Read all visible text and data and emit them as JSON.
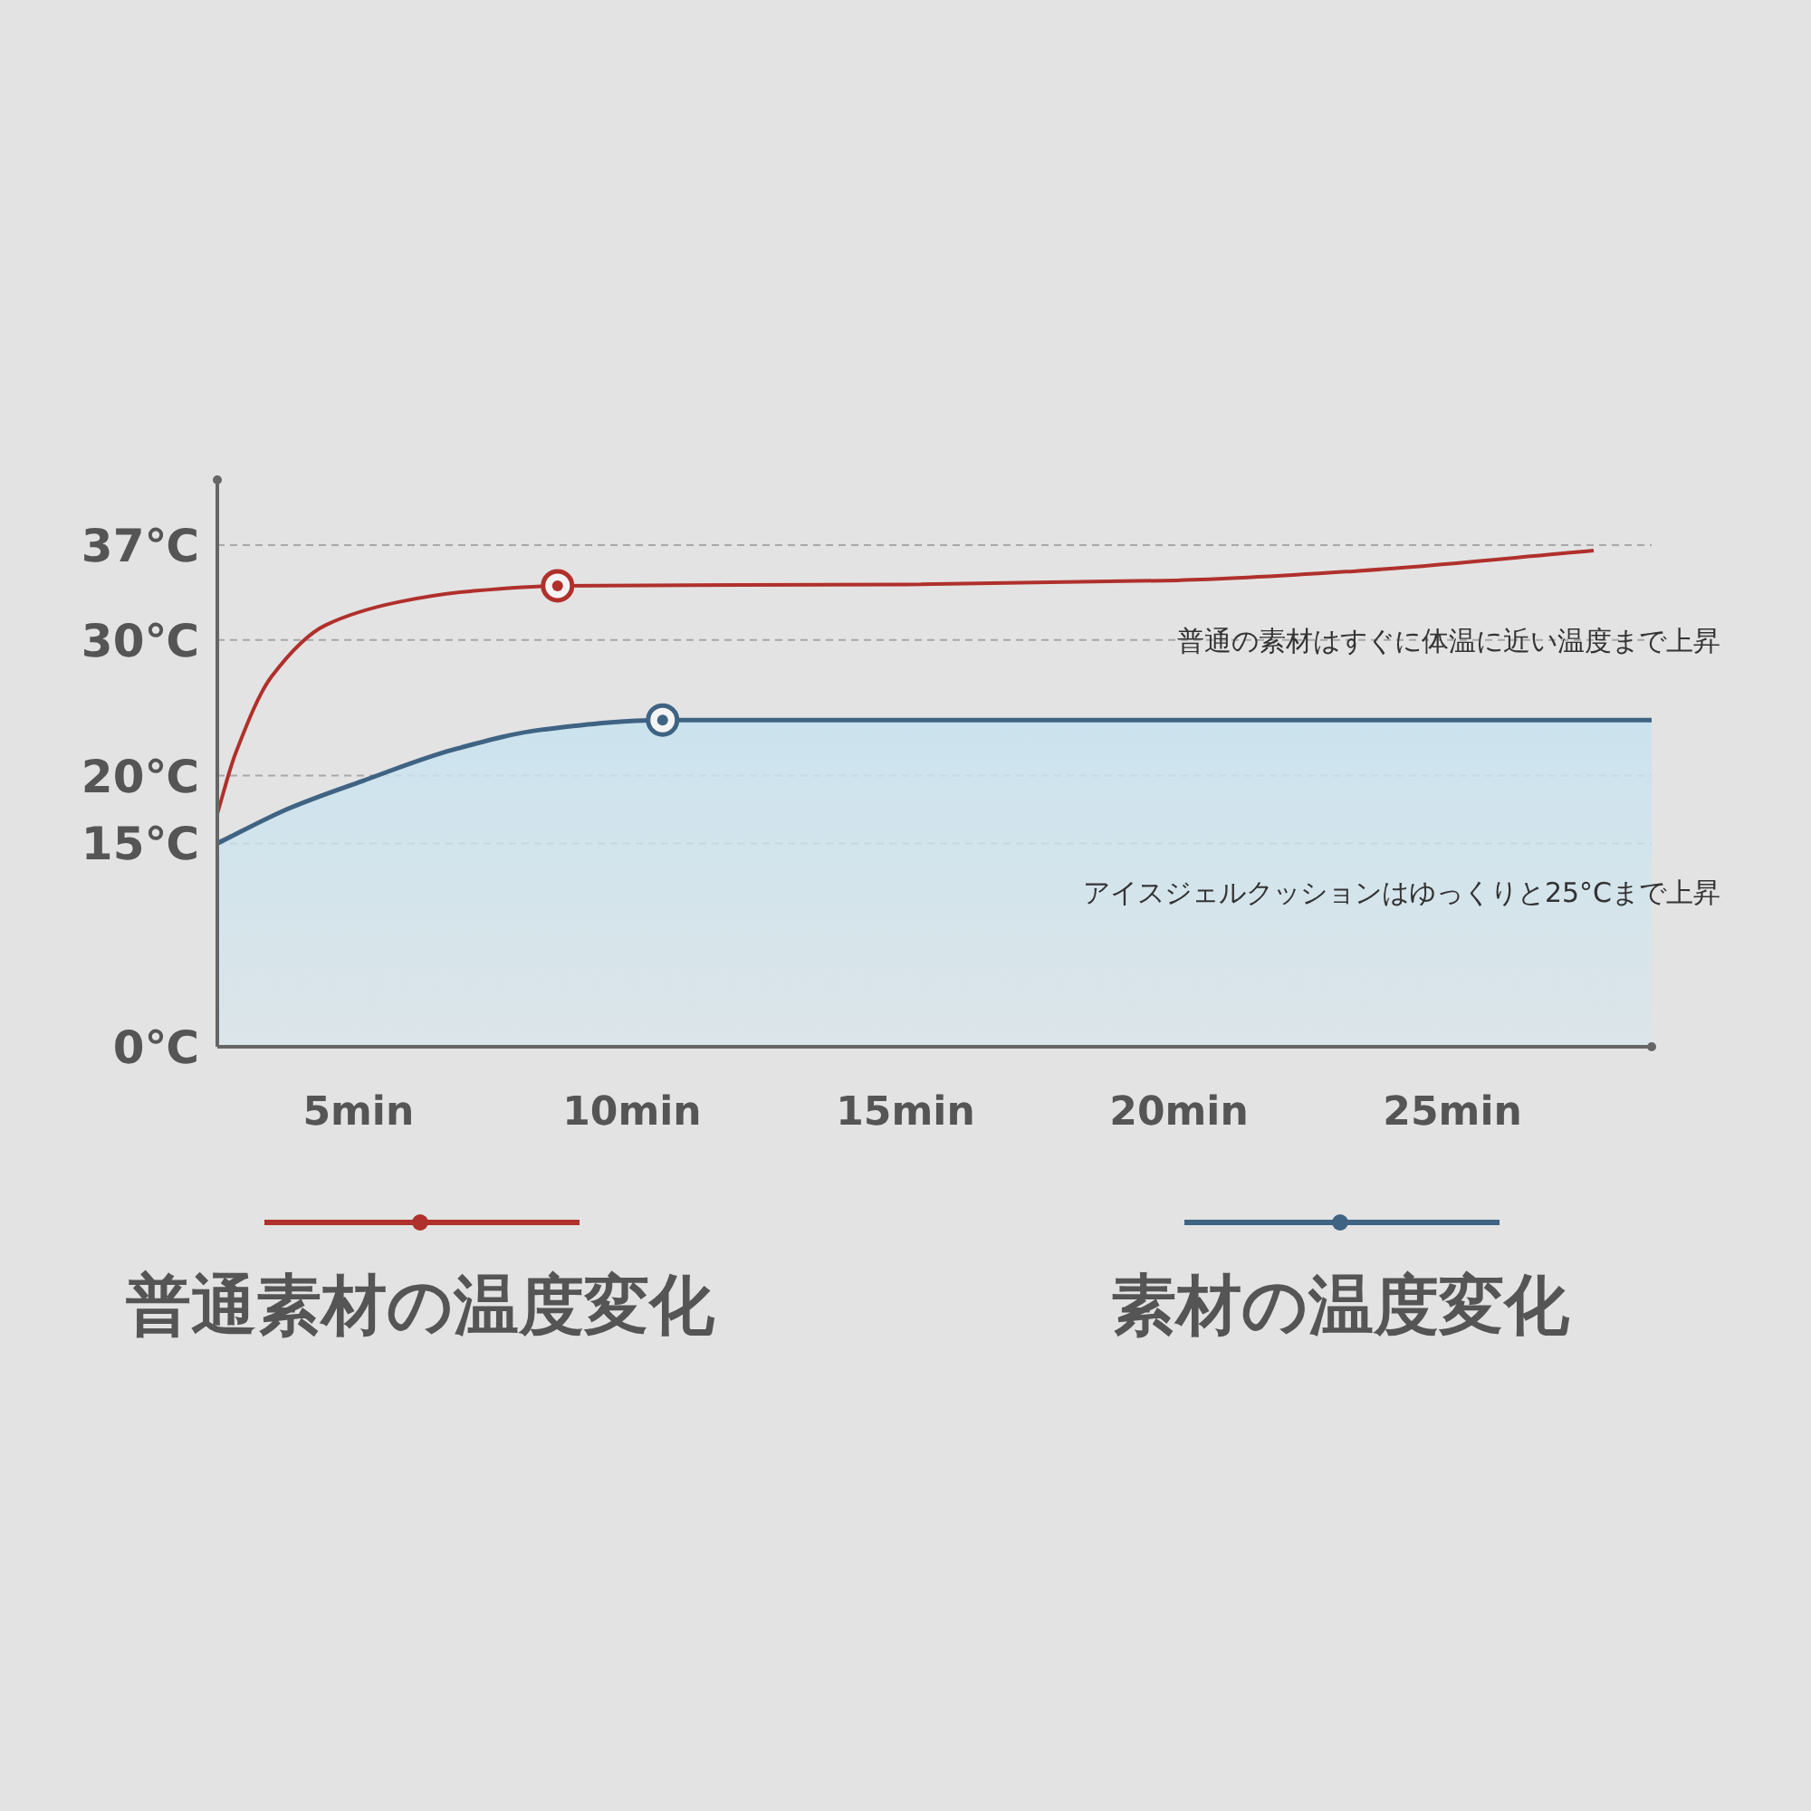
{
  "chart_data": {
    "type": "line",
    "xlim": [
      2.42,
      28.64
    ],
    "ylim": [
      0,
      37
    ],
    "xticks": [
      {
        "value": 5,
        "label": "5min"
      },
      {
        "value": 10,
        "label": "10min"
      },
      {
        "value": 15,
        "label": "15min"
      },
      {
        "value": 20,
        "label": "20min"
      },
      {
        "value": 25,
        "label": "25min"
      }
    ],
    "yticks": [
      {
        "value": 0,
        "label": "0℃"
      },
      {
        "value": 15,
        "label": "15℃"
      },
      {
        "value": 20,
        "label": "20℃"
      },
      {
        "value": 30,
        "label": "30℃"
      },
      {
        "value": 37,
        "label": "37℃"
      }
    ],
    "grid": "y",
    "legend": "bottom",
    "series": [
      {
        "name": "普通素材の温度変化",
        "color": "#b0302c",
        "x": [
          2.42,
          2.75,
          3.41,
          4.4,
          5.73,
          7.05,
          8.64,
          15,
          19.97,
          23.28,
          27.58
        ],
        "values": [
          17.2,
          21.6,
          27.3,
          31.1,
          32.8,
          33.6,
          34.0,
          34.1,
          34.4,
          35.1,
          36.6
        ]
      },
      {
        "name": "素材の温度変化",
        "type": "area",
        "color": "#3f6383",
        "x": [
          2.42,
          3.74,
          5.07,
          6.72,
          8.38,
          10.56,
          28.64
        ],
        "values": [
          15,
          17.6,
          19.6,
          21.9,
          23.4,
          24.1,
          24.1
        ]
      },
      {
        "type": "scatter",
        "color": "#b0302c",
        "x": [
          8.64
        ],
        "values": [
          34.0
        ]
      },
      {
        "type": "scatter",
        "color": "#3f6383",
        "x": [
          10.56
        ],
        "values": [
          24.1
        ]
      }
    ],
    "annotations": [
      "普通の素材はすぐに体温に近い温度まで上昇",
      "アイスジェルクッションはゆっくりと25°Cまで上昇"
    ]
  }
}
